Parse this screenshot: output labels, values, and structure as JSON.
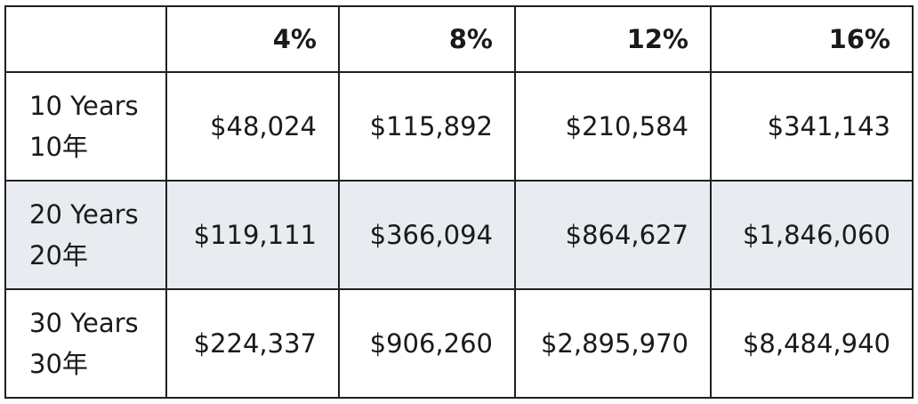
{
  "table": {
    "headers": [
      "",
      "4%",
      "8%",
      "12%",
      "16%"
    ],
    "rows": [
      {
        "label_en": "10 Years",
        "label_zh": "10年",
        "values": [
          "$48,024",
          "$115,892",
          "$210,584",
          "$341,143"
        ]
      },
      {
        "label_en": "20 Years",
        "label_zh": "20年",
        "values": [
          "$119,111",
          "$366,094",
          "$864,627",
          "$1,846,060"
        ]
      },
      {
        "label_en": "30 Years",
        "label_zh": "30年",
        "values": [
          "$224,337",
          "$906,260",
          "$2,895,970",
          "$8,484,940"
        ]
      }
    ],
    "colors": {
      "border": "#1f1f1f",
      "shaded_row": "#e8ebef",
      "text": "#1a1a1a"
    }
  }
}
